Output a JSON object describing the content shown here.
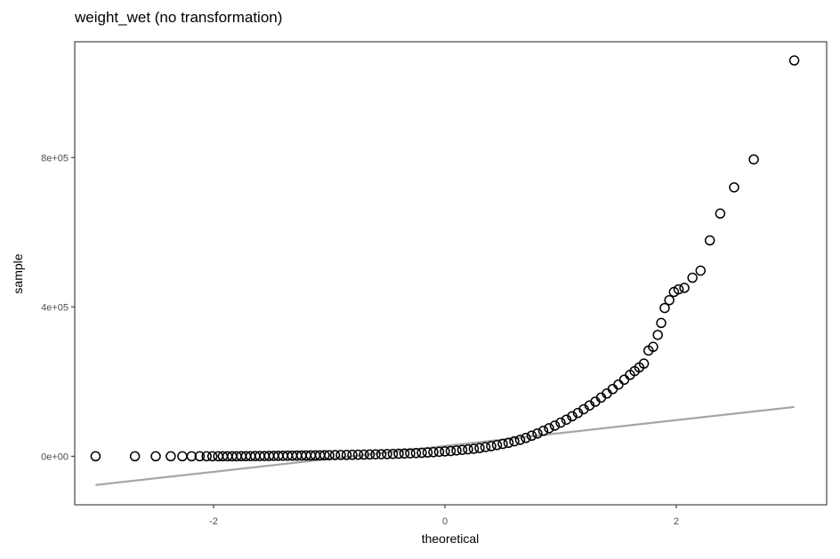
{
  "chart_data": {
    "type": "scatter",
    "title": "weight_wet (no transformation)",
    "xlabel": "theoretical",
    "ylabel": "sample",
    "xlim": [
      -3.2,
      3.3
    ],
    "ylim": [
      -130000,
      1110000
    ],
    "x_ticks": [
      {
        "value": -2,
        "label": "-2"
      },
      {
        "value": 0,
        "label": "0"
      },
      {
        "value": 2,
        "label": "2"
      }
    ],
    "y_ticks": [
      {
        "value": 0,
        "label": "0e+00"
      },
      {
        "value": 400000,
        "label": "4e+05"
      },
      {
        "value": 800000,
        "label": "8e+05"
      }
    ],
    "grid": false,
    "reference_line": {
      "x": [
        -3.02,
        3.02
      ],
      "y": [
        -77000,
        132000
      ],
      "color": "#a6a6a6"
    },
    "point_color": "#000000",
    "series": [
      {
        "points": [
          [
            -3.02,
            0
          ],
          [
            -2.68,
            0
          ],
          [
            -2.5,
            0
          ],
          [
            -2.37,
            0
          ],
          [
            -2.27,
            0
          ],
          [
            -2.19,
            0
          ],
          [
            -2.12,
            0
          ],
          [
            -2.06,
            0
          ],
          [
            -2.01,
            0
          ],
          [
            -1.96,
            0
          ],
          [
            -1.92,
            0
          ],
          [
            -1.88,
            0
          ],
          [
            -1.84,
            0
          ],
          [
            -1.8,
            0
          ],
          [
            -1.76,
            200
          ],
          [
            -1.72,
            300
          ],
          [
            -1.68,
            400
          ],
          [
            -1.64,
            500
          ],
          [
            -1.6,
            600
          ],
          [
            -1.56,
            700
          ],
          [
            -1.52,
            800
          ],
          [
            -1.48,
            1000
          ],
          [
            -1.44,
            1100
          ],
          [
            -1.4,
            1200
          ],
          [
            -1.36,
            1400
          ],
          [
            -1.32,
            1500
          ],
          [
            -1.28,
            1700
          ],
          [
            -1.24,
            1800
          ],
          [
            -1.2,
            2000
          ],
          [
            -1.16,
            2100
          ],
          [
            -1.12,
            2300
          ],
          [
            -1.08,
            2500
          ],
          [
            -1.04,
            2600
          ],
          [
            -1.0,
            2800
          ],
          [
            -0.95,
            3000
          ],
          [
            -0.9,
            3300
          ],
          [
            -0.85,
            3500
          ],
          [
            -0.8,
            3800
          ],
          [
            -0.75,
            4100
          ],
          [
            -0.7,
            4400
          ],
          [
            -0.65,
            4700
          ],
          [
            -0.6,
            5100
          ],
          [
            -0.55,
            5500
          ],
          [
            -0.5,
            5900
          ],
          [
            -0.45,
            6300
          ],
          [
            -0.4,
            6800
          ],
          [
            -0.35,
            7300
          ],
          [
            -0.3,
            7800
          ],
          [
            -0.25,
            8500
          ],
          [
            -0.2,
            9200
          ],
          [
            -0.15,
            10000
          ],
          [
            -0.1,
            11000
          ],
          [
            -0.05,
            12000
          ],
          [
            0.0,
            13000
          ],
          [
            0.05,
            14000
          ],
          [
            0.1,
            15500
          ],
          [
            0.15,
            17000
          ],
          [
            0.2,
            18500
          ],
          [
            0.25,
            20000
          ],
          [
            0.3,
            22000
          ],
          [
            0.35,
            24500
          ],
          [
            0.4,
            27000
          ],
          [
            0.45,
            30000
          ],
          [
            0.5,
            33000
          ],
          [
            0.55,
            36000
          ],
          [
            0.6,
            40000
          ],
          [
            0.65,
            44000
          ],
          [
            0.7,
            49000
          ],
          [
            0.75,
            55000
          ],
          [
            0.8,
            61000
          ],
          [
            0.85,
            68000
          ],
          [
            0.9,
            75000
          ],
          [
            0.95,
            82000
          ],
          [
            1.0,
            90000
          ],
          [
            1.05,
            98000
          ],
          [
            1.1,
            107000
          ],
          [
            1.15,
            116000
          ],
          [
            1.2,
            126000
          ],
          [
            1.25,
            136000
          ],
          [
            1.3,
            146000
          ],
          [
            1.35,
            157000
          ],
          [
            1.4,
            168000
          ],
          [
            1.45,
            180000
          ],
          [
            1.5,
            192000
          ],
          [
            1.55,
            205000
          ],
          [
            1.6,
            218000
          ],
          [
            1.64,
            228000
          ],
          [
            1.68,
            238000
          ],
          [
            1.72,
            248000
          ],
          [
            1.76,
            283000
          ],
          [
            1.8,
            293000
          ],
          [
            1.84,
            325000
          ],
          [
            1.87,
            357000
          ],
          [
            1.9,
            397000
          ],
          [
            1.94,
            418000
          ],
          [
            1.98,
            440000
          ],
          [
            2.02,
            447000
          ],
          [
            2.07,
            451000
          ],
          [
            2.14,
            478000
          ],
          [
            2.21,
            497000
          ],
          [
            2.29,
            578000
          ],
          [
            2.38,
            650000
          ],
          [
            2.5,
            720000
          ],
          [
            2.67,
            795000
          ],
          [
            3.02,
            1060000
          ]
        ]
      }
    ]
  }
}
